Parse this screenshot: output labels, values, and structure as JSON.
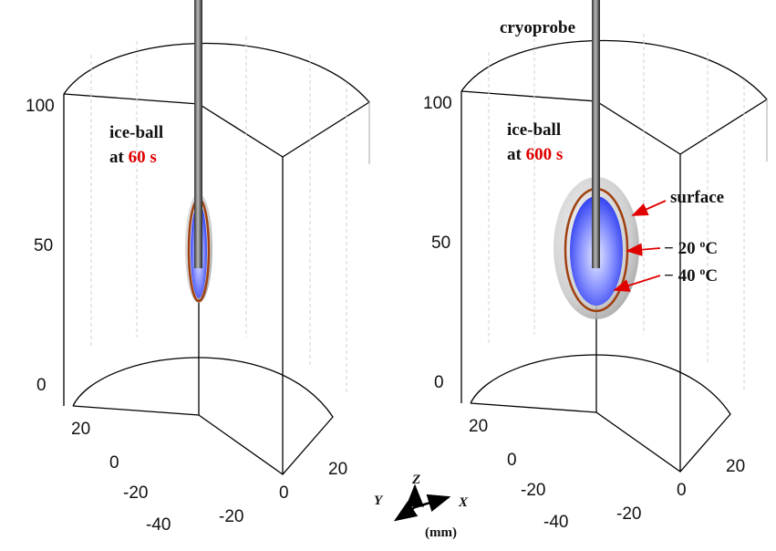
{
  "panels": [
    {
      "z_ticks": [
        "100",
        "50",
        "0"
      ],
      "y_ticks": [
        "20",
        "0",
        "-20",
        "-40"
      ],
      "x_ticks": [
        "-20",
        "0",
        "20"
      ],
      "label_name": "ice-ball",
      "label_at": "at",
      "label_time": "60 s"
    },
    {
      "z_ticks": [
        "100",
        "50",
        "0"
      ],
      "y_ticks": [
        "20",
        "0",
        "-20",
        "-40"
      ],
      "x_ticks": [
        "-20",
        "0",
        "20"
      ],
      "label_name": "ice-ball",
      "label_at": "at",
      "label_time": "600 s"
    }
  ],
  "annotations": {
    "probe": "cryoprobe",
    "surface": "surface",
    "minus20": {
      "value": "− 20",
      "sup": "o",
      "unit": "C"
    },
    "minus40": {
      "value": "− 40",
      "sup": "o",
      "unit": "C"
    }
  },
  "axes_legend": {
    "z": "Z",
    "y": "Y",
    "x": "X",
    "unit": "(mm)"
  }
}
